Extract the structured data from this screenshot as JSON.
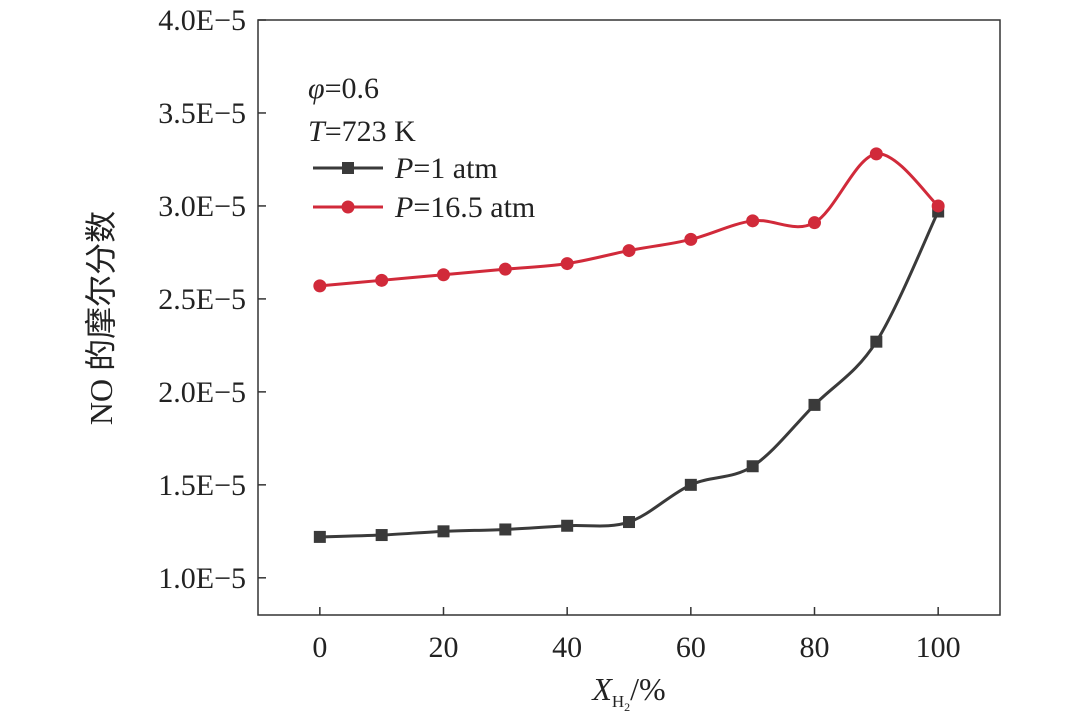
{
  "chart_data": {
    "type": "line",
    "title": "",
    "xlabel": {
      "main": "X",
      "sub": "H",
      "subsub": "2",
      "suffix": "/%"
    },
    "ylabel": "NO 的摩尔分数",
    "xlim": [
      -10,
      110
    ],
    "ylim": [
      8e-06,
      4e-05
    ],
    "x_ticks": [
      0,
      20,
      40,
      60,
      80,
      100
    ],
    "y_ticks": [
      1e-05,
      1.5e-05,
      2e-05,
      2.5e-05,
      3e-05,
      3.5e-05,
      4e-05
    ],
    "y_tick_labels": [
      "1.0E−5",
      "1.5E−5",
      "2.0E−5",
      "2.5E−5",
      "3.0E−5",
      "3.5E−5",
      "4.0E−5"
    ],
    "grid": false,
    "legend_position": "top-left",
    "annotations": [
      {
        "var": "φ",
        "text": "=0.6"
      },
      {
        "var": "T",
        "text": "=723 K"
      }
    ],
    "x": [
      0,
      10,
      20,
      30,
      40,
      50,
      60,
      70,
      80,
      90,
      100
    ],
    "series": [
      {
        "name_var": "P",
        "name_text": "=1 atm",
        "color": "#3a3a3a",
        "marker": "square",
        "values": [
          1.22e-05,
          1.23e-05,
          1.25e-05,
          1.26e-05,
          1.28e-05,
          1.3e-05,
          1.5e-05,
          1.6e-05,
          1.93e-05,
          2.27e-05,
          2.97e-05
        ]
      },
      {
        "name_var": "P",
        "name_text": "=16.5 atm",
        "color": "#d12a3a",
        "marker": "circle",
        "values": [
          2.57e-05,
          2.6e-05,
          2.63e-05,
          2.66e-05,
          2.69e-05,
          2.76e-05,
          2.82e-05,
          2.92e-05,
          2.91e-05,
          3.28e-05,
          3e-05
        ]
      }
    ]
  }
}
